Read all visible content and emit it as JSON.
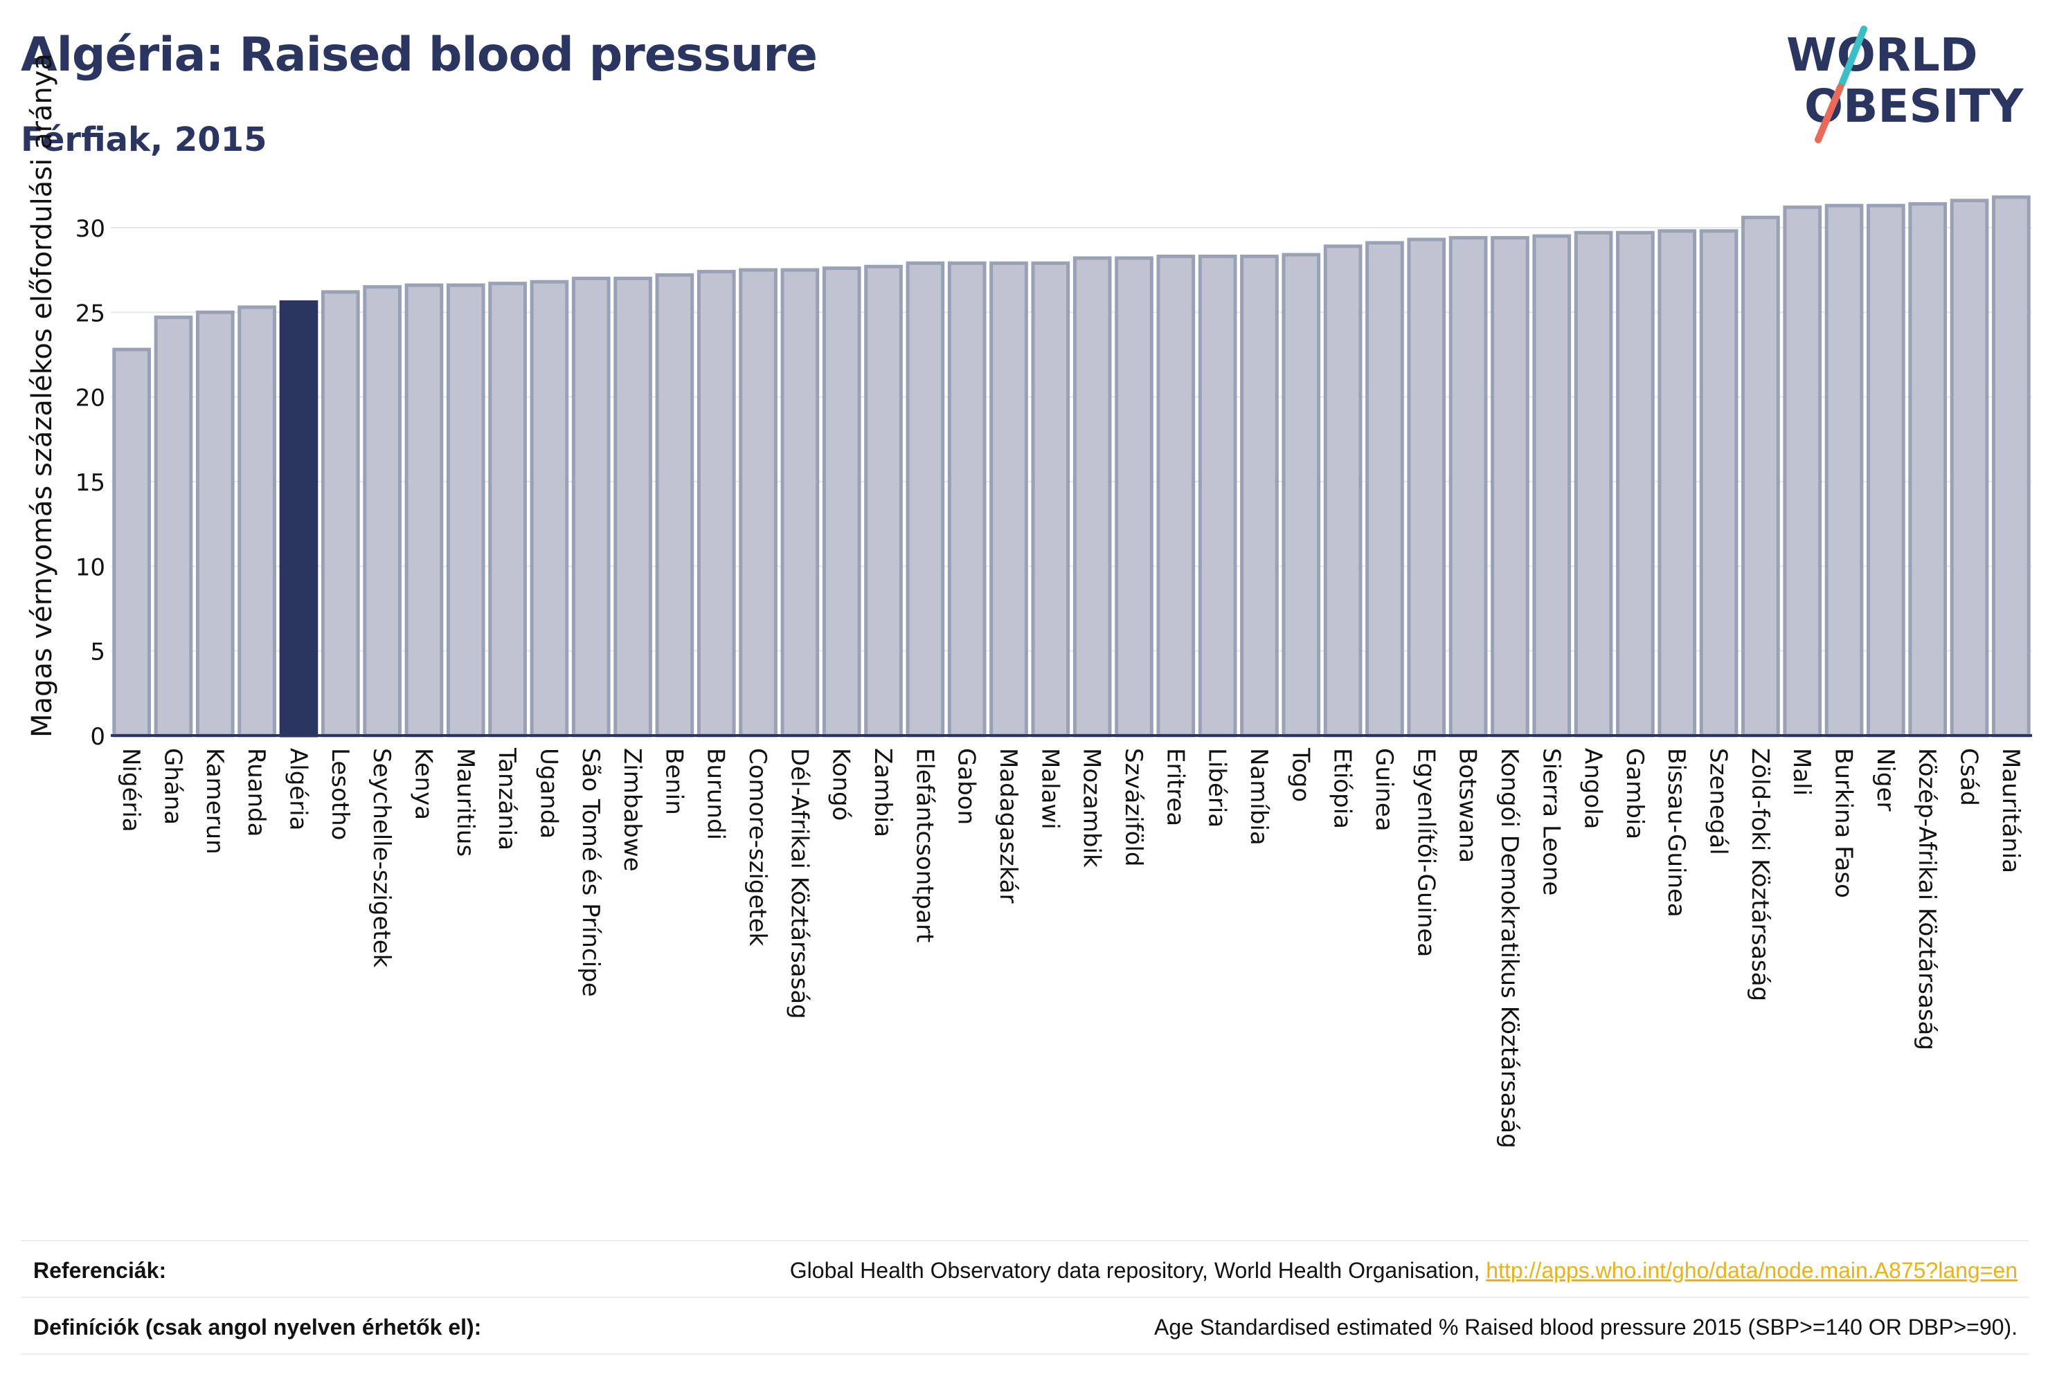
{
  "header": {
    "title": "Algéria: Raised blood pressure",
    "subtitle": "Férfiak, 2015"
  },
  "logo": {
    "line1": "WORLD",
    "line2": "OBESITY",
    "slash_colors": [
      "#3bbfc4",
      "#e96a5a"
    ],
    "text_color": "#2b3660"
  },
  "colors": {
    "bar": "#c0c3d0",
    "bar_stroke": "#9aa0b6",
    "highlight": "#2b3660",
    "axis": "#2b3660",
    "grid": "#e6e7ec"
  },
  "chart_data": {
    "type": "bar",
    "ylabel": "Magas vérnyomás százalékos előfordulási aránya",
    "ylim": [
      0,
      32
    ],
    "yticks": [
      0,
      5,
      10,
      15,
      20,
      25,
      30
    ],
    "grid": true,
    "highlight": "Algéria",
    "categories": [
      "Nigéria",
      "Ghána",
      "Kamerun",
      "Ruanda",
      "Algéria",
      "Lesotho",
      "Seychelle-szigetek",
      "Kenya",
      "Mauritius",
      "Tanzánia",
      "Uganda",
      "São Tomé és Príncipe",
      "Zimbabwe",
      "Benin",
      "Burundi",
      "Comore-szigetek",
      "Dél-Afrikai Köztársaság",
      "Kongó",
      "Zambia",
      "Elefántcsontpart",
      "Gabon",
      "Madagaszkár",
      "Malawi",
      "Mozambik",
      "Szváziföld",
      "Eritrea",
      "Libéria",
      "Namíbia",
      "Togo",
      "Etiópia",
      "Guinea",
      "Egyenlítői-Guinea",
      "Botswana",
      "Kongói Demokratikus Köztársaság",
      "Sierra Leone",
      "Angola",
      "Gambia",
      "Bissau-Guinea",
      "Szenegál",
      "Zöld-foki Köztársaság",
      "Mali",
      "Burkina Faso",
      "Niger",
      "Közép-Afrikai Köztársaság",
      "Csád",
      "Mauritánia"
    ],
    "values": [
      22.8,
      24.7,
      25.0,
      25.3,
      25.6,
      26.2,
      26.5,
      26.6,
      26.6,
      26.7,
      26.8,
      27.0,
      27.0,
      27.2,
      27.4,
      27.5,
      27.5,
      27.6,
      27.7,
      27.9,
      27.9,
      27.9,
      27.9,
      28.2,
      28.2,
      28.3,
      28.3,
      28.3,
      28.4,
      28.9,
      29.1,
      29.3,
      29.4,
      29.4,
      29.5,
      29.7,
      29.7,
      29.8,
      29.8,
      30.6,
      31.2,
      31.3,
      31.3,
      31.4,
      31.6,
      31.8
    ]
  },
  "footer": {
    "references_label": "Referenciák:",
    "references_text": "Global Health Observatory data repository, World Health Organisation, ",
    "references_link": "http://apps.who.int/gho/data/node.main.A875?lang=en",
    "definitions_label": "Definíciók (csak angol nyelven érhetők el):",
    "definitions_text": "Age Standardised estimated % Raised blood pressure 2015 (SBP>=140 OR DBP>=90)."
  }
}
